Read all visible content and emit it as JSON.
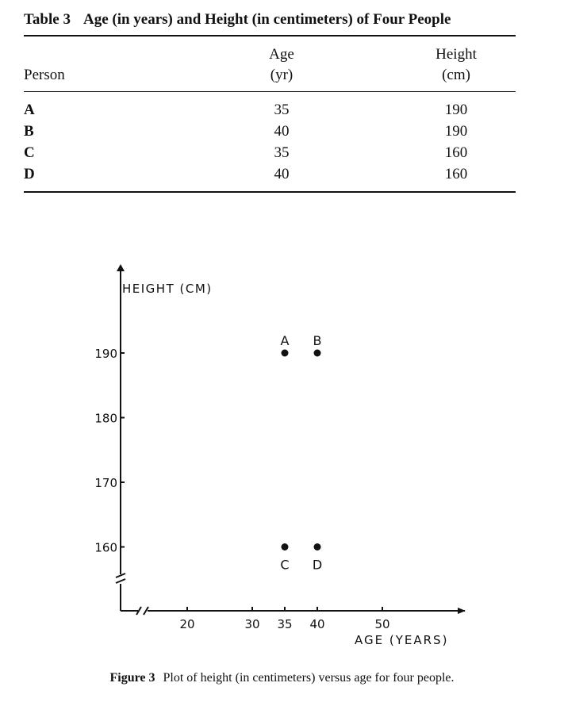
{
  "table": {
    "label": "Table 3",
    "title": "Age (in years) and Height (in centimeters) of Four People",
    "headers": {
      "person": "Person",
      "age": "Age",
      "age_unit": "(yr)",
      "height": "Height",
      "height_unit": "(cm)"
    },
    "rows": [
      {
        "person": "A",
        "age": "35",
        "height": "190"
      },
      {
        "person": "B",
        "age": "40",
        "height": "190"
      },
      {
        "person": "C",
        "age": "35",
        "height": "160"
      },
      {
        "person": "D",
        "age": "40",
        "height": "160"
      }
    ]
  },
  "figure": {
    "label": "Figure 3",
    "caption": "Plot of height (in centimeters) versus age for four people."
  },
  "chart_data": {
    "type": "scatter",
    "ylabel": "HEIGHT (CM)",
    "xlabel": "AGE (YEARS)",
    "x_ticks": [
      20,
      30,
      35,
      40,
      50
    ],
    "y_ticks": [
      160,
      170,
      180,
      190
    ],
    "axis_breaks": true,
    "grid": false,
    "points": [
      {
        "label": "A",
        "x": 35,
        "y": 190
      },
      {
        "label": "B",
        "x": 40,
        "y": 190
      },
      {
        "label": "C",
        "x": 35,
        "y": 160
      },
      {
        "label": "D",
        "x": 40,
        "y": 160
      }
    ]
  }
}
